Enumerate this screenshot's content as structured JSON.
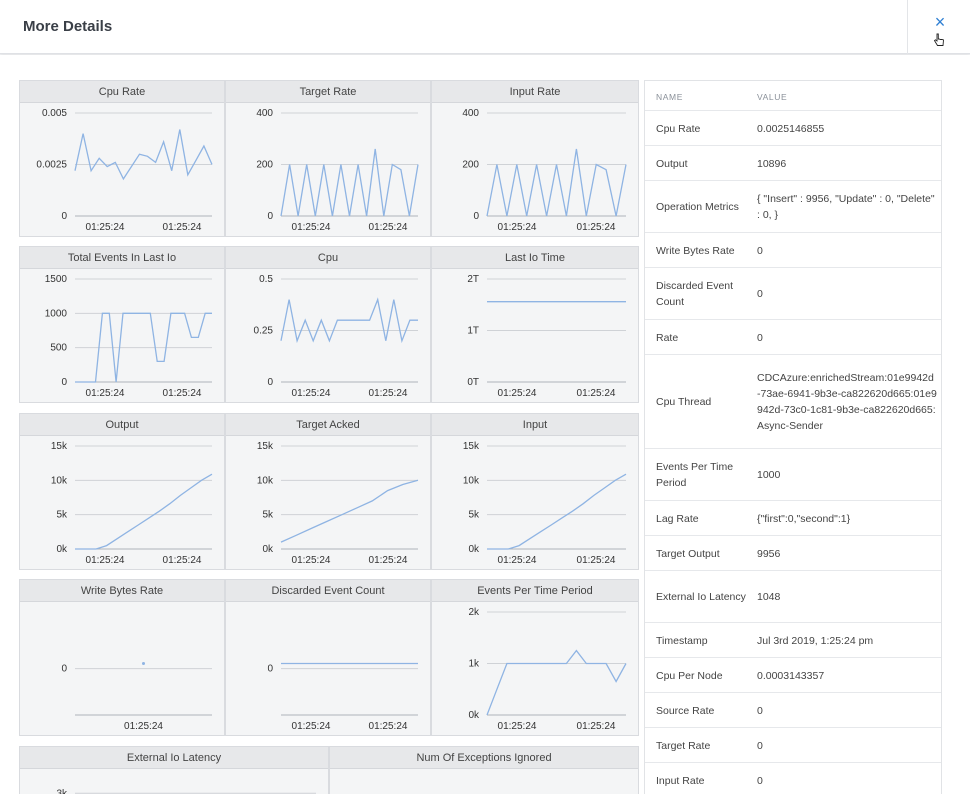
{
  "header": {
    "title": "More Details",
    "close_icon": "×"
  },
  "charts": [
    {
      "title": "Cpu Rate",
      "yticks": [
        "0.005",
        "0.0025",
        "0"
      ],
      "xticks": [
        "01:25:24",
        "01:25:24"
      ]
    },
    {
      "title": "Target Rate",
      "yticks": [
        "400",
        "200",
        "0"
      ],
      "xticks": [
        "01:25:24",
        "01:25:24"
      ]
    },
    {
      "title": "Input Rate",
      "yticks": [
        "400",
        "200",
        "0"
      ],
      "xticks": [
        "01:25:24",
        "01:25:24"
      ]
    },
    {
      "title": "Total Events In Last Io",
      "yticks": [
        "1500",
        "1000",
        "500",
        "0"
      ],
      "xticks": [
        "01:25:24",
        "01:25:24"
      ]
    },
    {
      "title": "Cpu",
      "yticks": [
        "0.5",
        "0.25",
        "0"
      ],
      "xticks": [
        "01:25:24",
        "01:25:24"
      ]
    },
    {
      "title": "Last Io Time",
      "yticks": [
        "2T",
        "1T",
        "0T"
      ],
      "xticks": [
        "01:25:24",
        "01:25:24"
      ]
    },
    {
      "title": "Output",
      "yticks": [
        "15k",
        "10k",
        "5k",
        "0k"
      ],
      "xticks": [
        "01:25:24",
        "01:25:24"
      ]
    },
    {
      "title": "Target Acked",
      "yticks": [
        "15k",
        "10k",
        "5k",
        "0k"
      ],
      "xticks": [
        "01:25:24",
        "01:25:24"
      ]
    },
    {
      "title": "Input",
      "yticks": [
        "15k",
        "10k",
        "5k",
        "0k"
      ],
      "xticks": [
        "01:25:24",
        "01:25:24"
      ]
    },
    {
      "title": "Write Bytes Rate",
      "yticks": [
        "0"
      ],
      "xticks": [
        "01:25:24"
      ]
    },
    {
      "title": "Discarded Event Count",
      "yticks": [
        "0"
      ],
      "xticks": [
        "01:25:24",
        "01:25:24"
      ]
    },
    {
      "title": "Events Per Time Period",
      "yticks": [
        "2k",
        "1k",
        "0k"
      ],
      "xticks": [
        "01:25:24",
        "01:25:24"
      ]
    },
    {
      "title": "External Io Latency",
      "yticks": [
        "3k"
      ],
      "xticks": []
    },
    {
      "title": "Num Of Exceptions Ignored",
      "yticks": [],
      "xticks": []
    }
  ],
  "chart_data": [
    {
      "type": "line",
      "title": "Cpu Rate",
      "ylim": [
        0,
        0.005
      ],
      "values": [
        0.0022,
        0.004,
        0.0022,
        0.0028,
        0.0024,
        0.0026,
        0.0018,
        0.0024,
        0.003,
        0.0029,
        0.0026,
        0.0036,
        0.0022,
        0.0042,
        0.002,
        0.0027,
        0.0034,
        0.0025
      ]
    },
    {
      "type": "line",
      "title": "Target Rate",
      "ylim": [
        0,
        400
      ],
      "values": [
        0,
        200,
        0,
        200,
        0,
        200,
        0,
        200,
        0,
        200,
        0,
        260,
        0,
        200,
        180,
        0,
        200
      ]
    },
    {
      "type": "line",
      "title": "Input Rate",
      "ylim": [
        0,
        400
      ],
      "values": [
        0,
        200,
        0,
        200,
        0,
        200,
        0,
        200,
        0,
        260,
        0,
        200,
        180,
        0,
        200
      ]
    },
    {
      "type": "line",
      "title": "Total Events In Last Io",
      "ylim": [
        0,
        1500
      ],
      "values": [
        0,
        0,
        0,
        0,
        1000,
        1000,
        0,
        1000,
        1000,
        1000,
        1000,
        1000,
        300,
        300,
        1000,
        1000,
        1000,
        650,
        650,
        1000,
        1000
      ]
    },
    {
      "type": "line",
      "title": "Cpu",
      "ylim": [
        0,
        0.5
      ],
      "values": [
        0.2,
        0.4,
        0.2,
        0.3,
        0.2,
        0.3,
        0.2,
        0.3,
        0.3,
        0.3,
        0.3,
        0.3,
        0.4,
        0.2,
        0.4,
        0.2,
        0.3,
        0.3
      ]
    },
    {
      "type": "line",
      "title": "Last Io Time",
      "ylim": [
        0,
        2
      ],
      "values": [
        1.56,
        1.56,
        1.56,
        1.56,
        1.56,
        1.56,
        1.56,
        1.56,
        1.56,
        1.56,
        1.56,
        1.56,
        1.56,
        1.56,
        1.56,
        1.56,
        1.56,
        1.56,
        1.56,
        1.56
      ]
    },
    {
      "type": "line",
      "title": "Output",
      "ylim": [
        0,
        15000
      ],
      "values": [
        0,
        0,
        0,
        500,
        1500,
        2500,
        3500,
        4500,
        5500,
        6600,
        7800,
        8900,
        10000,
        10900
      ]
    },
    {
      "type": "line",
      "title": "Target Acked",
      "ylim": [
        0,
        15000
      ],
      "values": [
        1000,
        2000,
        3000,
        4000,
        5000,
        6000,
        7000,
        8500,
        9400,
        10000
      ]
    },
    {
      "type": "line",
      "title": "Input",
      "ylim": [
        0,
        15000
      ],
      "values": [
        0,
        0,
        0,
        500,
        1500,
        2500,
        3500,
        4500,
        5500,
        6600,
        7800,
        8900,
        10000,
        10900
      ]
    },
    {
      "type": "line",
      "title": "Write Bytes Rate",
      "ylim": [
        -1,
        1
      ],
      "values": [
        0
      ]
    },
    {
      "type": "line",
      "title": "Discarded Event Count",
      "ylim": [
        -1,
        1
      ],
      "values": [
        0,
        0,
        0,
        0,
        0,
        0,
        0,
        0,
        0,
        0,
        0,
        0,
        0,
        0,
        0,
        0,
        0,
        0,
        0,
        0
      ]
    },
    {
      "type": "line",
      "title": "Events Per Time Period",
      "ylim": [
        0,
        2000
      ],
      "values": [
        0,
        500,
        1000,
        1000,
        1000,
        1000,
        1000,
        1000,
        1000,
        1250,
        1000,
        1000,
        1000,
        650,
        1000
      ]
    }
  ],
  "table": {
    "headers": {
      "name": "NAME",
      "value": "VALUE"
    },
    "rows": [
      {
        "name": "Cpu Rate",
        "value": "0.0025146855"
      },
      {
        "name": "Output",
        "value": "10896"
      },
      {
        "name": "Operation Metrics",
        "value": "{ \"Insert\" : 9956, \"Update\" : 0, \"Delete\" : 0, }"
      },
      {
        "name": "Write Bytes Rate",
        "value": "0"
      },
      {
        "name": "Discarded Event Count",
        "value": "0"
      },
      {
        "name": "Rate",
        "value": "0"
      },
      {
        "name": "Cpu Thread",
        "value": "CDCAzure:enrichedStream:01e9942d-73ae-6941-9b3e-ca822620d665:01e9942d-73c0-1c81-9b3e-ca822620d665:Async-Sender"
      },
      {
        "name": "Events Per Time Period",
        "value": "1000"
      },
      {
        "name": "Lag Rate",
        "value": "{\"first\":0,\"second\":1}"
      },
      {
        "name": "Target Output",
        "value": "9956"
      },
      {
        "name": "External Io Latency",
        "value": "1048"
      },
      {
        "name": "Timestamp",
        "value": "Jul 3rd 2019, 1:25:24 pm"
      },
      {
        "name": "Cpu Per Node",
        "value": "0.0003143357"
      },
      {
        "name": "Source Rate",
        "value": "0"
      },
      {
        "name": "Target Rate",
        "value": "0"
      },
      {
        "name": "Input Rate",
        "value": "0"
      }
    ]
  },
  "colors": {
    "line": "#8fb4e3",
    "accent": "#2e7fd3"
  }
}
